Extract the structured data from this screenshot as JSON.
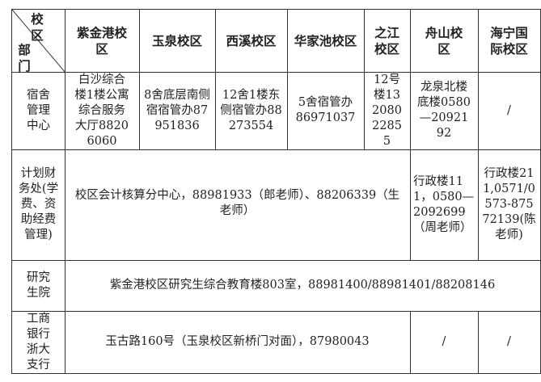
{
  "header": {
    "corner_top": "校区",
    "corner_bottom": "部门",
    "campuses": [
      "紫金港校区",
      "玉泉校区",
      "西溪校区",
      "华家池校区",
      "之江校区",
      "舟山校区",
      "海宁国际校区"
    ]
  },
  "rows": [
    {
      "dept": "宿舍管理中心",
      "cells": [
        "白沙综合楼1楼公寓综合服务大厅88206060",
        "8舍底层南侧宿宿管办87951836",
        "12舍1楼东侧宿管办88273554",
        "5舍宿管办86971037",
        "12号楼13208022855",
        "龙泉北楼底楼0580—2092192",
        "/"
      ]
    },
    {
      "dept": "计划财务处(学费、资助经费管理)",
      "merged": "校区会计核算分中心，88981933（郎老师）、88206339（生老师）",
      "cells": [
        "行政楼111，0580—2092699（周老师）",
        "行政楼211,0571/0573-87572139(陈老师)"
      ]
    },
    {
      "dept": "研究生院",
      "merged": "紫金港校区研究生综合教育楼803室，88981400/88981401/88208146"
    },
    {
      "dept": "工商银行浙大支行",
      "merged": "玉古路160号（玉泉校区新桥门对面），87980043",
      "cells": [
        "/",
        "/"
      ]
    }
  ]
}
